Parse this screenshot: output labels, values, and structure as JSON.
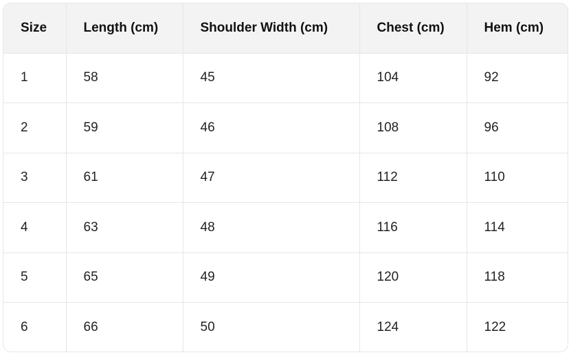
{
  "table": {
    "headers": [
      "Size",
      "Length (cm)",
      "Shoulder Width (cm)",
      "Chest (cm)",
      "Hem (cm)"
    ],
    "rows": [
      [
        "1",
        "58",
        "45",
        "104",
        "92"
      ],
      [
        "2",
        "59",
        "46",
        "108",
        "96"
      ],
      [
        "3",
        "61",
        "47",
        "112",
        "110"
      ],
      [
        "4",
        "63",
        "48",
        "116",
        "114"
      ],
      [
        "5",
        "65",
        "49",
        "120",
        "118"
      ],
      [
        "6",
        "66",
        "50",
        "124",
        "122"
      ]
    ]
  }
}
